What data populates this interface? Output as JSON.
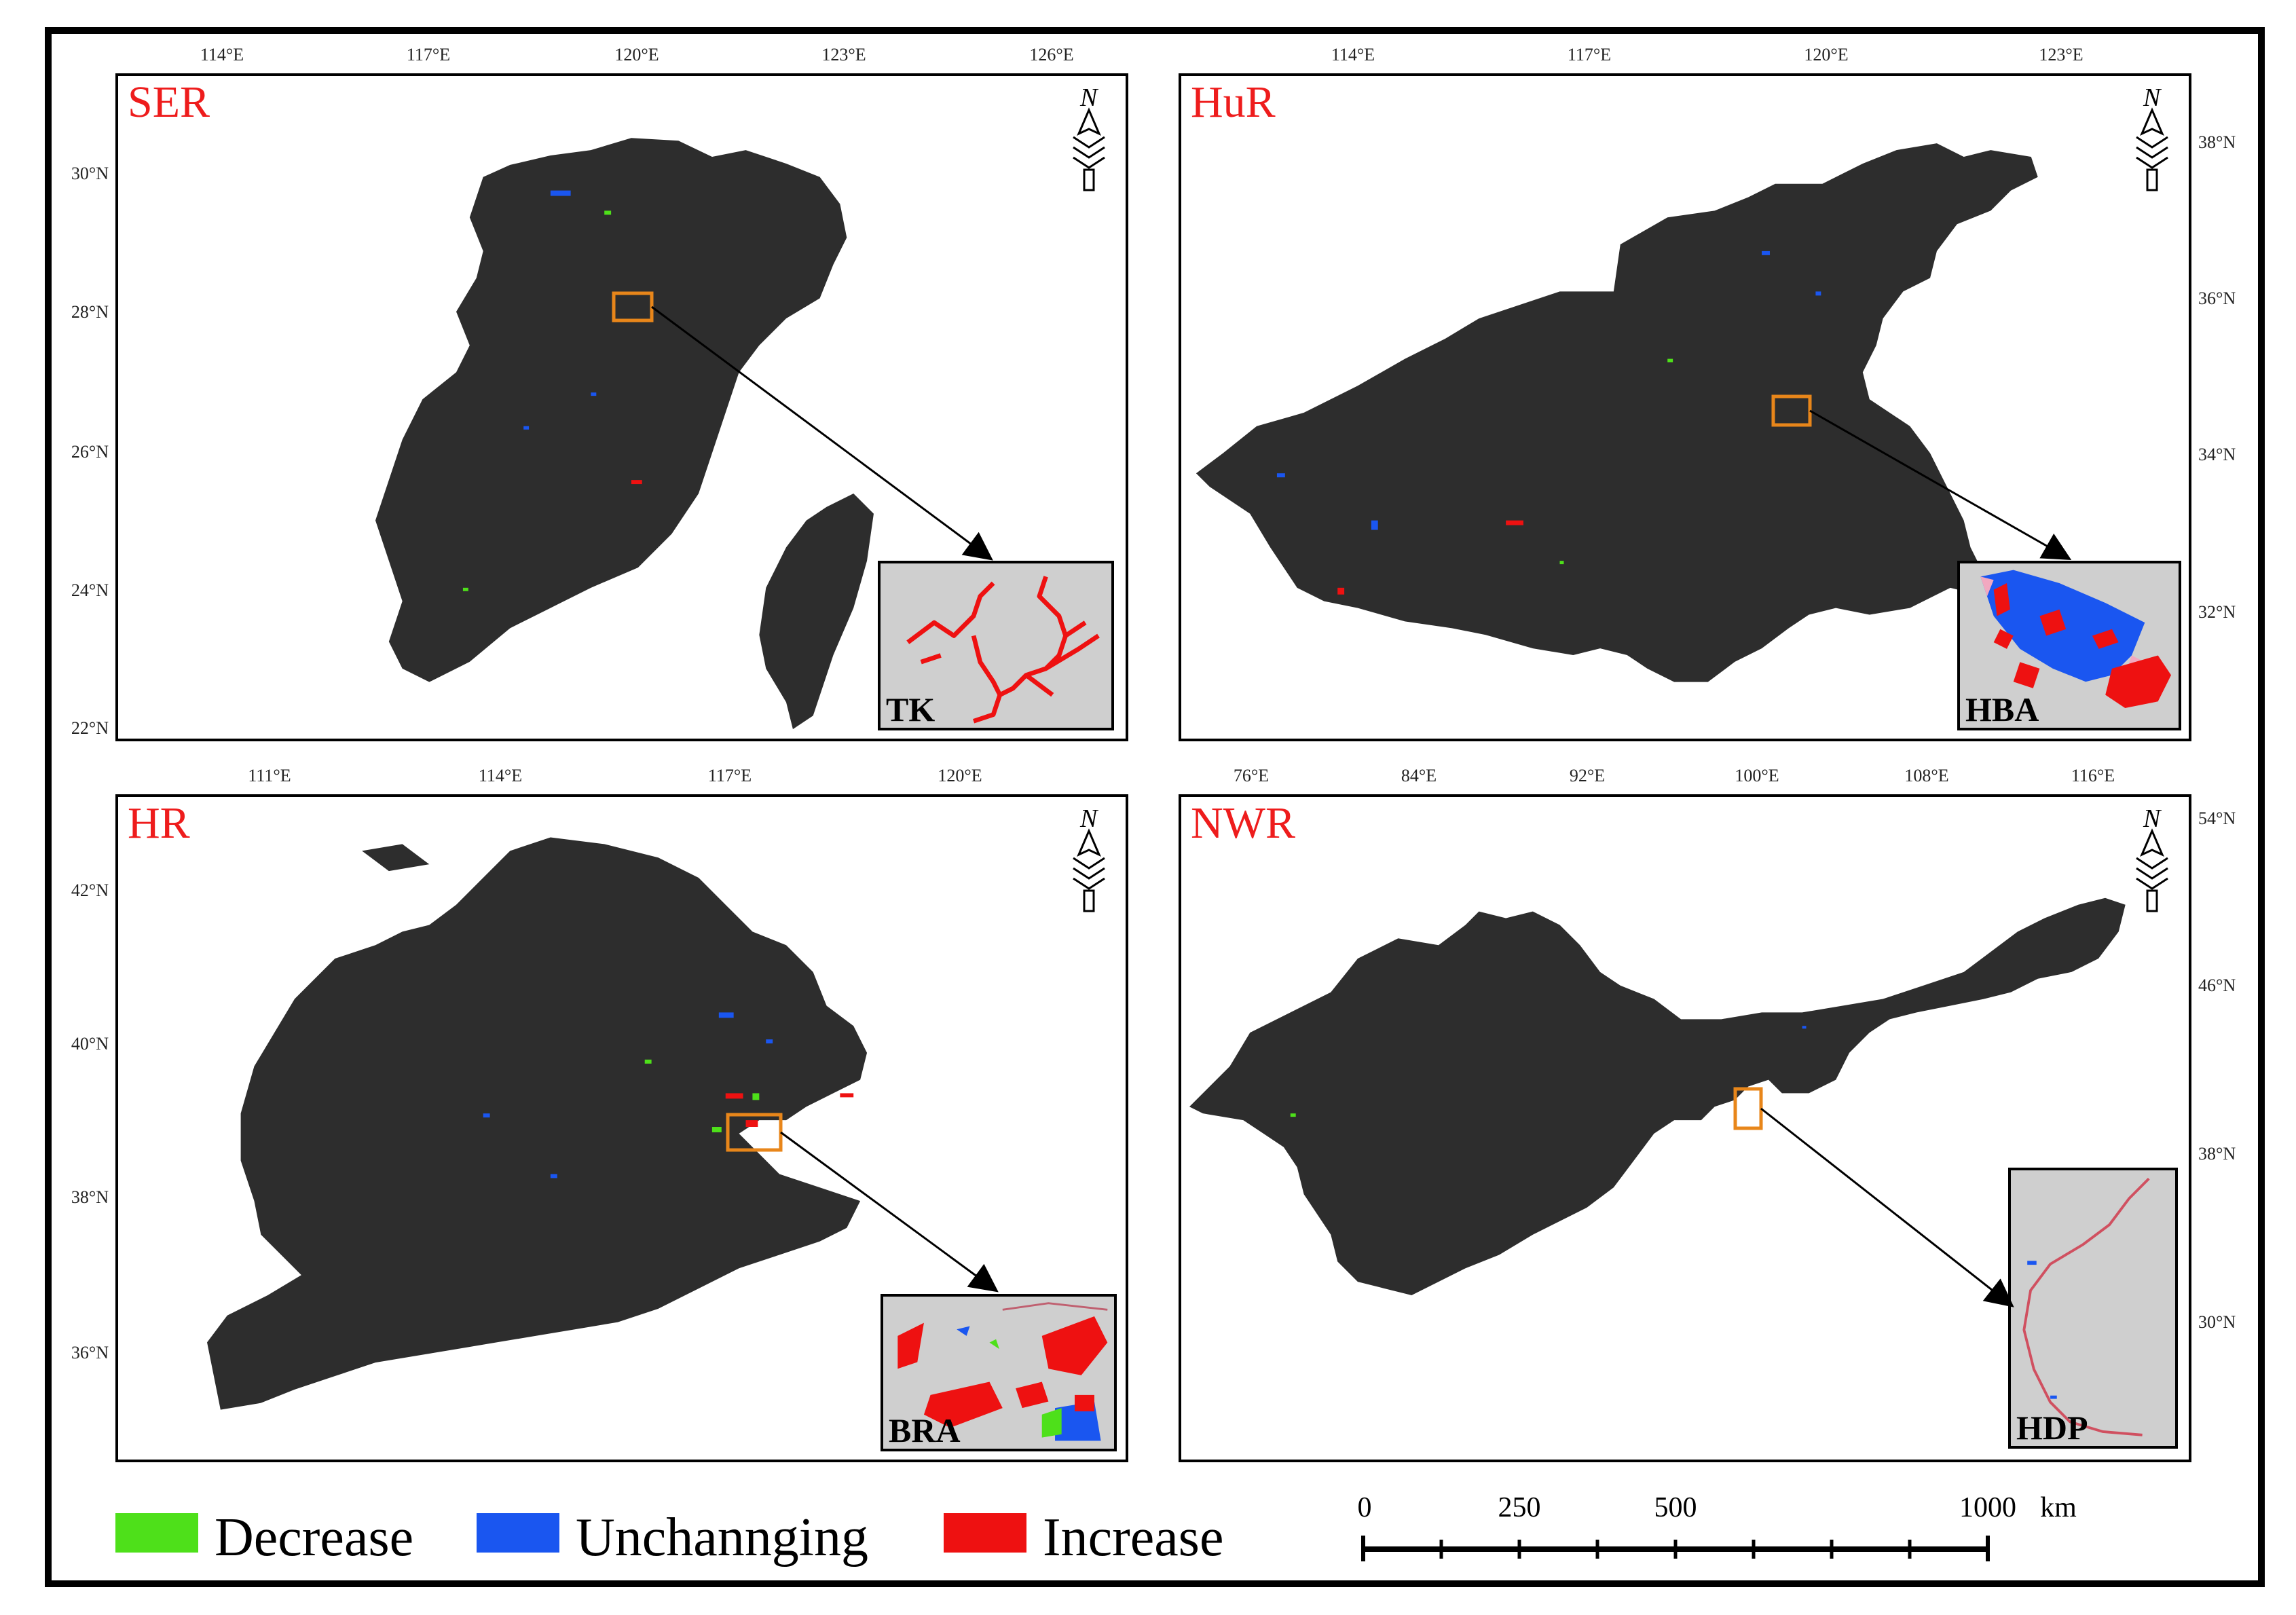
{
  "panels": {
    "ser": {
      "label": "SER",
      "top_ticks": [
        "114°E",
        "117°E",
        "120°E",
        "123°E",
        "126°E"
      ],
      "left_ticks": [
        "30°N",
        "28°N",
        "26°N",
        "24°N",
        "22°N"
      ],
      "north_label": "N",
      "inset_label": "TK"
    },
    "hur": {
      "label": "HuR",
      "top_ticks": [
        "114°E",
        "117°E",
        "120°E",
        "123°E"
      ],
      "right_ticks": [
        "38°N",
        "36°N",
        "34°N",
        "32°N"
      ],
      "north_label": "N",
      "inset_label": "HBA"
    },
    "hr": {
      "label": "HR",
      "top_ticks": [
        "111°E",
        "114°E",
        "117°E",
        "120°E"
      ],
      "left_ticks": [
        "42°N",
        "40°N",
        "38°N",
        "36°N"
      ],
      "north_label": "N",
      "inset_label": "BRA"
    },
    "nwr": {
      "label": "NWR",
      "top_ticks": [
        "76°E",
        "84°E",
        "92°E",
        "100°E",
        "108°E",
        "116°E"
      ],
      "right_ticks": [
        "54°N",
        "46°N",
        "38°N",
        "30°N"
      ],
      "north_label": "N",
      "inset_label": "HDP"
    }
  },
  "legend": [
    {
      "label": "Decrease",
      "color": "#4ee01a"
    },
    {
      "label": "Unchannging",
      "color": "#1a56f0"
    },
    {
      "label": "Increase",
      "color": "#ee1111"
    }
  ],
  "scale_bar": {
    "labels": [
      "0",
      "250",
      "500",
      "1000"
    ],
    "unit": "km"
  },
  "colors": {
    "land": "#2d2d2d",
    "highlight_box": "#e8861a",
    "inset_bg": "#cfcfcf",
    "region_label": "#ee1c1c"
  }
}
